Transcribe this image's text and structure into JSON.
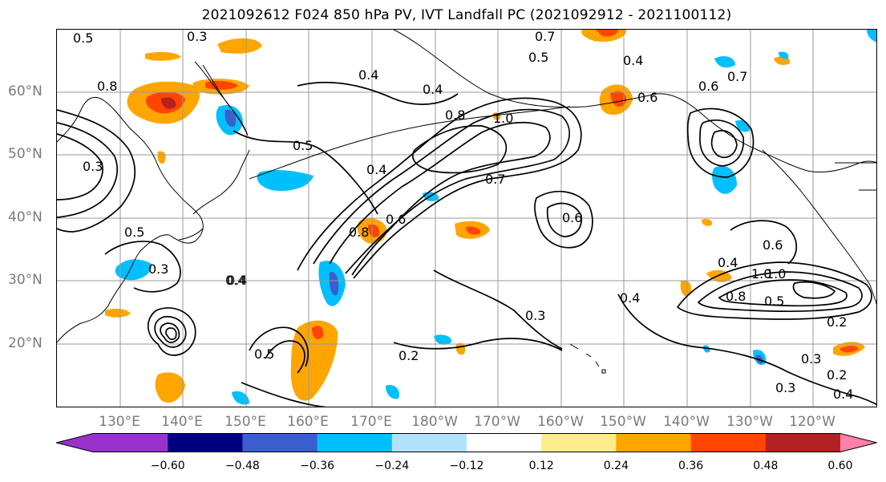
{
  "title": "2021092612 F024 850 hPa PV, IVT Landfall PC (2021092912 - 2021100112)",
  "lat_labels": [
    "60°N",
    "50°N",
    "40°N",
    "30°N",
    "20°N"
  ],
  "lon_labels": [
    "130°E",
    "140°E",
    "150°E",
    "160°E",
    "170°E",
    "180°W",
    "170°W",
    "160°W",
    "150°W",
    "140°W",
    "130°W",
    "120°W"
  ],
  "contour_labels": [
    "0.3",
    "0.7",
    "0.5",
    "0.4",
    "0.4",
    "0.4",
    "0.8",
    "1.0",
    "0.6",
    "0.7",
    "0.8",
    "0.5",
    "0.3",
    "0.5",
    "0.4",
    "0.7",
    "0.6",
    "0.6",
    "0.6",
    "0.5",
    "0.3",
    "0.4",
    "0.4",
    "1.0",
    "0.8",
    "0.5",
    "0.6",
    "0.4",
    "0.3",
    "0.2",
    "0.3",
    "0.2",
    "0.3",
    "0.4",
    "0.2",
    "0.5",
    "0.4",
    "0.8",
    "1.0"
  ],
  "colorbar": {
    "ticks": [
      "−0.60",
      "−0.48",
      "−0.36",
      "−0.24",
      "−0.12",
      "0.12",
      "0.24",
      "0.36",
      "0.48",
      "0.60"
    ],
    "colors": [
      "#9932cc",
      "#000080",
      "#3a5fcd",
      "#00bfff",
      "#b0e2ff",
      "#ffffff",
      "#ffec8b",
      "#ffa500",
      "#ff4500",
      "#b22222",
      "#ff82ab"
    ]
  }
}
